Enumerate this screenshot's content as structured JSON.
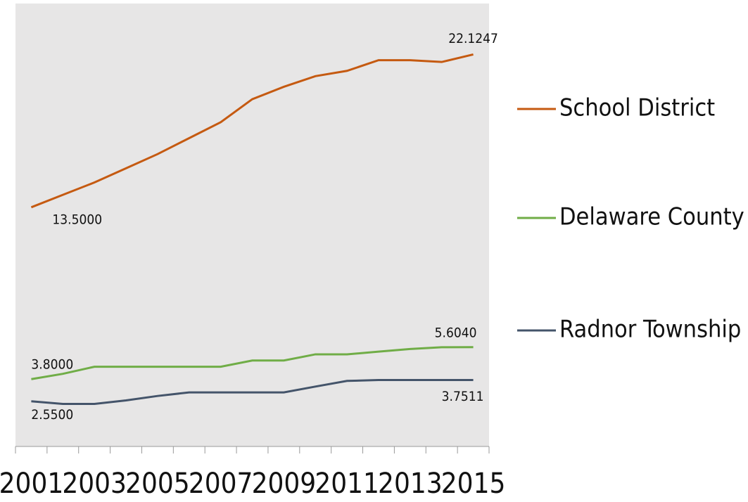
{
  "chart_data": {
    "type": "line",
    "categories": [
      "2001",
      null,
      "2003",
      null,
      "2005",
      null,
      "2007",
      null,
      "2009",
      null,
      "2011",
      null,
      "2013",
      null,
      "2015"
    ],
    "series": [
      {
        "name": "School District",
        "color": "#c55a11",
        "values": [
          13.5,
          14.2,
          14.9,
          15.7,
          16.5,
          17.4,
          18.3,
          19.6,
          20.3,
          20.9,
          21.2,
          21.8,
          21.8,
          21.7,
          22.1247
        ],
        "value_labels": [
          "13.5000",
          null,
          null,
          null,
          null,
          null,
          null,
          null,
          null,
          null,
          null,
          null,
          null,
          null,
          "22.1247"
        ]
      },
      {
        "name": "Delaware County",
        "color": "#70ad47",
        "values": [
          3.8,
          4.1,
          4.5,
          4.5,
          4.5,
          4.5,
          4.5,
          4.85,
          4.85,
          5.2,
          5.2,
          5.35,
          5.5,
          5.6,
          5.604
        ],
        "value_labels": [
          "3.8000",
          null,
          null,
          null,
          null,
          null,
          null,
          null,
          null,
          null,
          null,
          null,
          null,
          null,
          "5.6040"
        ]
      },
      {
        "name": "Radnor Township",
        "color": "#44546a",
        "values": [
          2.55,
          2.4,
          2.4,
          2.6,
          2.85,
          3.05,
          3.05,
          3.05,
          3.05,
          3.38,
          3.7,
          3.75,
          3.75,
          3.75,
          3.7511
        ],
        "value_labels": [
          "2.5500",
          null,
          null,
          null,
          null,
          null,
          null,
          null,
          null,
          null,
          null,
          null,
          null,
          null,
          "3.7511"
        ]
      }
    ],
    "ylim": [
      0,
      25
    ],
    "legend": "right"
  }
}
